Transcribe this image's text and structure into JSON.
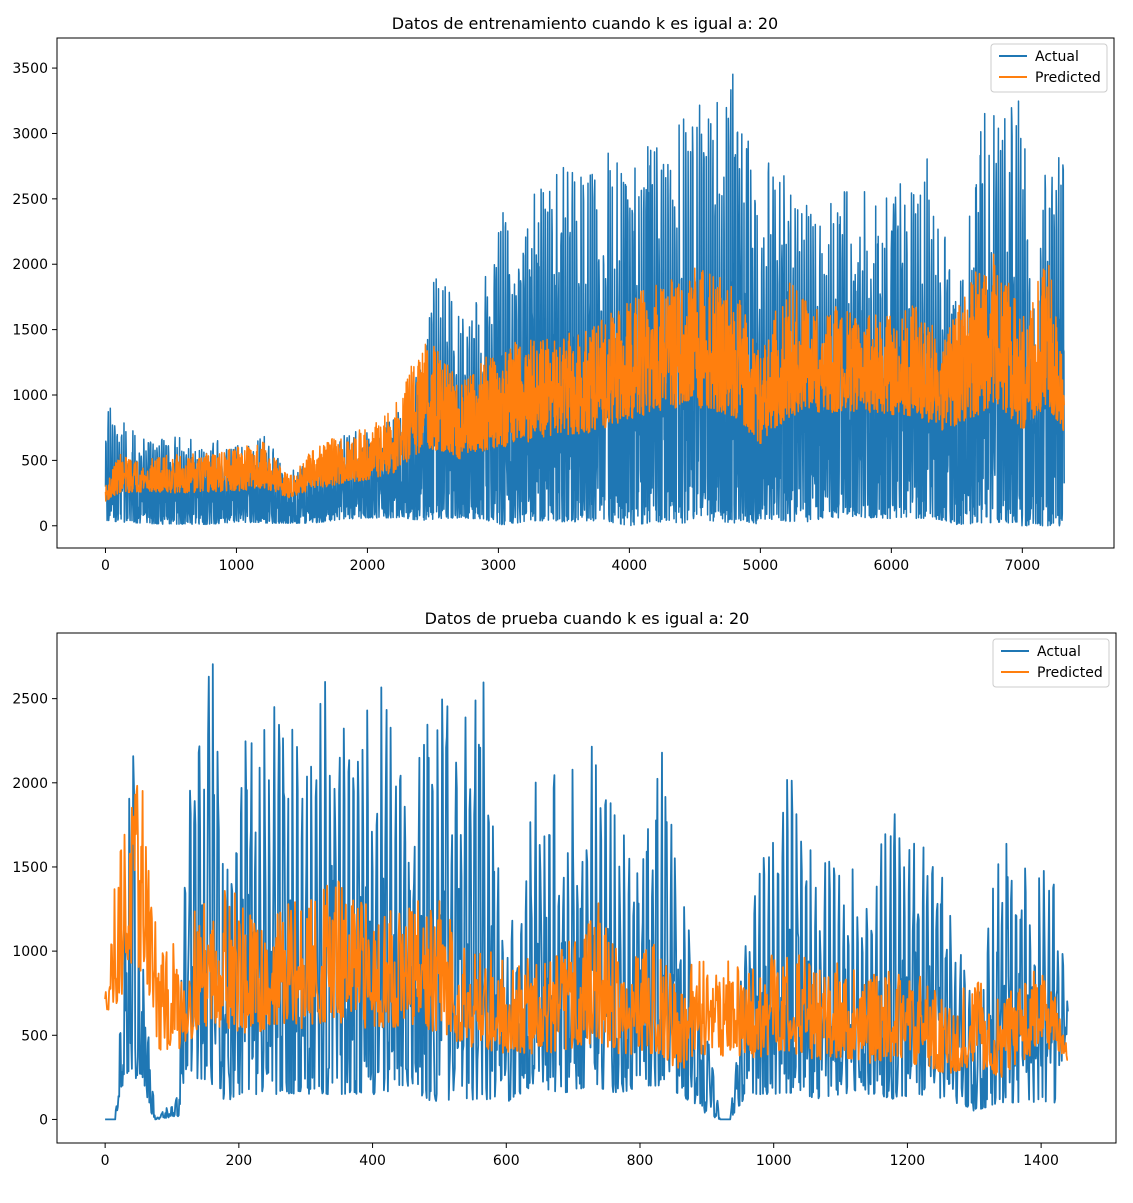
{
  "figure": {
    "background": "#ffffff",
    "axis_color": "#000000",
    "series_colors": [
      "#1f77b4",
      "#ff7f0e"
    ]
  },
  "chart_data": [
    {
      "type": "line",
      "title": "Datos de entrenamiento cuando k es igual a: 20",
      "xlabel": "",
      "ylabel": "",
      "xlim": [
        -370,
        7700
      ],
      "ylim": [
        -170,
        3730
      ],
      "xticks": [
        0,
        1000,
        2000,
        3000,
        4000,
        5000,
        6000,
        7000
      ],
      "yticks": [
        0,
        500,
        1000,
        1500,
        2000,
        2500,
        3000,
        3500
      ],
      "x_range": [
        0,
        7320
      ],
      "grid": false,
      "legend_position": "top-right",
      "series": [
        {
          "name": "Actual",
          "color": "#1f77b4",
          "envelope": [
            [
              0,
              930,
              40
            ],
            [
              100,
              850,
              30
            ],
            [
              250,
              700,
              20
            ],
            [
              500,
              680,
              10
            ],
            [
              800,
              650,
              10
            ],
            [
              1000,
              690,
              30
            ],
            [
              1200,
              700,
              20
            ],
            [
              1400,
              420,
              20
            ],
            [
              1600,
              500,
              20
            ],
            [
              1800,
              700,
              50
            ],
            [
              2000,
              750,
              60
            ],
            [
              2200,
              820,
              60
            ],
            [
              2450,
              1400,
              40
            ],
            [
              2500,
              2100,
              50
            ],
            [
              2700,
              1600,
              60
            ],
            [
              2900,
              1900,
              50
            ],
            [
              3000,
              2400,
              0
            ],
            [
              3200,
              2400,
              30
            ],
            [
              3300,
              2690,
              40
            ],
            [
              3500,
              2800,
              20
            ],
            [
              3700,
              2700,
              40
            ],
            [
              3900,
              2950,
              20
            ],
            [
              4000,
              2900,
              0
            ],
            [
              4200,
              3000,
              30
            ],
            [
              4400,
              3250,
              20
            ],
            [
              4600,
              3200,
              40
            ],
            [
              4800,
              3560,
              20
            ],
            [
              4850,
              3400,
              40
            ],
            [
              5000,
              2600,
              10
            ],
            [
              5100,
              2900,
              50
            ],
            [
              5300,
              2450,
              20
            ],
            [
              5500,
              2500,
              60
            ],
            [
              5700,
              2700,
              60
            ],
            [
              5900,
              2450,
              60
            ],
            [
              6100,
              2700,
              50
            ],
            [
              6300,
              2830,
              60
            ],
            [
              6500,
              1700,
              10
            ],
            [
              6700,
              3150,
              20
            ],
            [
              6850,
              3300,
              30
            ],
            [
              7000,
              3280,
              0
            ],
            [
              7100,
              1500,
              0
            ],
            [
              7200,
              3150,
              0
            ],
            [
              7320,
              2850,
              0
            ]
          ]
        },
        {
          "name": "Predicted",
          "color": "#ff7f0e",
          "envelope": [
            [
              0,
              300,
              150
            ],
            [
              100,
              550,
              150
            ],
            [
              300,
              500,
              180
            ],
            [
              500,
              550,
              150
            ],
            [
              800,
              550,
              160
            ],
            [
              1000,
              600,
              150
            ],
            [
              1200,
              650,
              170
            ],
            [
              1400,
              380,
              160
            ],
            [
              1600,
              600,
              180
            ],
            [
              1800,
              700,
              190
            ],
            [
              2000,
              750,
              220
            ],
            [
              2200,
              900,
              240
            ],
            [
              2450,
              1500,
              300
            ],
            [
              2700,
              1100,
              300
            ],
            [
              2900,
              1300,
              340
            ],
            [
              3100,
              1400,
              350
            ],
            [
              3400,
              1450,
              420
            ],
            [
              3700,
              1500,
              450
            ],
            [
              4000,
              1750,
              500
            ],
            [
              4300,
              1900,
              550
            ],
            [
              4500,
              2000,
              550
            ],
            [
              4800,
              1850,
              500
            ],
            [
              5000,
              1300,
              400
            ],
            [
              5200,
              1900,
              450
            ],
            [
              5400,
              1650,
              600
            ],
            [
              5700,
              1700,
              600
            ],
            [
              6000,
              1600,
              600
            ],
            [
              6200,
              1700,
              550
            ],
            [
              6400,
              1400,
              500
            ],
            [
              6600,
              1900,
              450
            ],
            [
              6800,
              2100,
              500
            ],
            [
              7000,
              1600,
              450
            ],
            [
              7200,
              2100,
              500
            ],
            [
              7320,
              1350,
              500
            ]
          ]
        }
      ]
    },
    {
      "type": "line",
      "title": "Datos de prueba cuando k es igual a: 20",
      "xlabel": "",
      "ylabel": "",
      "xlim": [
        -72,
        1512
      ],
      "ylim": [
        -140,
        2890
      ],
      "xticks": [
        0,
        200,
        400,
        600,
        800,
        1000,
        1200,
        1400
      ],
      "yticks": [
        0,
        500,
        1000,
        1500,
        2000,
        2500
      ],
      "x_range": [
        0,
        1440
      ],
      "grid": false,
      "legend_position": "top-right",
      "series": [
        {
          "name": "Actual",
          "color": "#1f77b4",
          "envelope": [
            [
              0,
              0,
              0
            ],
            [
              15,
              0,
              0
            ],
            [
              25,
              800,
              180
            ],
            [
              40,
              2400,
              300
            ],
            [
              50,
              1200,
              200
            ],
            [
              60,
              1000,
              100
            ],
            [
              75,
              0,
              0
            ],
            [
              110,
              150,
              20
            ],
            [
              120,
              2000,
              300
            ],
            [
              135,
              2270,
              250
            ],
            [
              160,
              2790,
              200
            ],
            [
              180,
              1400,
              100
            ],
            [
              200,
              2000,
              150
            ],
            [
              210,
              2520,
              150
            ],
            [
              240,
              2400,
              150
            ],
            [
              260,
              2620,
              150
            ],
            [
              300,
              2100,
              150
            ],
            [
              330,
              2640,
              150
            ],
            [
              350,
              2720,
              150
            ],
            [
              380,
              2350,
              150
            ],
            [
              410,
              2630,
              150
            ],
            [
              450,
              2000,
              200
            ],
            [
              490,
              2610,
              100
            ],
            [
              520,
              2420,
              100
            ],
            [
              545,
              2610,
              100
            ],
            [
              570,
              2640,
              120
            ],
            [
              600,
              1000,
              100
            ],
            [
              640,
              2040,
              200
            ],
            [
              680,
              2050,
              150
            ],
            [
              730,
              2250,
              200
            ],
            [
              770,
              1750,
              150
            ],
            [
              800,
              1700,
              200
            ],
            [
              830,
              2360,
              200
            ],
            [
              860,
              1400,
              150
            ],
            [
              900,
              600,
              30
            ],
            [
              920,
              0,
              0
            ],
            [
              935,
              0,
              0
            ],
            [
              960,
              1300,
              150
            ],
            [
              1000,
              1800,
              150
            ],
            [
              1030,
              2220,
              150
            ],
            [
              1060,
              1600,
              120
            ],
            [
              1100,
              1550,
              150
            ],
            [
              1150,
              1600,
              150
            ],
            [
              1180,
              1900,
              120
            ],
            [
              1210,
              1850,
              150
            ],
            [
              1260,
              1400,
              120
            ],
            [
              1300,
              700,
              50
            ],
            [
              1340,
              1720,
              100
            ],
            [
              1380,
              1540,
              100
            ],
            [
              1420,
              1500,
              100
            ],
            [
              1440,
              700,
              550
            ]
          ]
        },
        {
          "name": "Predicted",
          "color": "#ff7f0e",
          "envelope": [
            [
              0,
              750,
              600
            ],
            [
              20,
              1650,
              380
            ],
            [
              40,
              2020,
              500
            ],
            [
              60,
              1970,
              500
            ],
            [
              80,
              1000,
              200
            ],
            [
              120,
              1100,
              200
            ],
            [
              140,
              1300,
              300
            ],
            [
              180,
              1450,
              250
            ],
            [
              220,
              1200,
              250
            ],
            [
              260,
              1300,
              300
            ],
            [
              300,
              1300,
              280
            ],
            [
              340,
              1450,
              300
            ],
            [
              380,
              1300,
              280
            ],
            [
              420,
              1300,
              300
            ],
            [
              460,
              1300,
              280
            ],
            [
              500,
              1300,
              250
            ],
            [
              540,
              1100,
              220
            ],
            [
              580,
              1000,
              200
            ],
            [
              620,
              950,
              200
            ],
            [
              660,
              1000,
              180
            ],
            [
              700,
              1100,
              200
            ],
            [
              740,
              1300,
              180
            ],
            [
              780,
              900,
              180
            ],
            [
              820,
              1100,
              160
            ],
            [
              860,
              800,
              120
            ],
            [
              900,
              1100,
              150
            ],
            [
              940,
              950,
              170
            ],
            [
              980,
              900,
              180
            ],
            [
              1020,
              1100,
              180
            ],
            [
              1060,
              900,
              170
            ],
            [
              1100,
              950,
              170
            ],
            [
              1140,
              850,
              160
            ],
            [
              1180,
              900,
              160
            ],
            [
              1220,
              850,
              150
            ],
            [
              1260,
              700,
              120
            ],
            [
              1300,
              850,
              150
            ],
            [
              1340,
              700,
              100
            ],
            [
              1380,
              950,
              180
            ],
            [
              1420,
              800,
              300
            ],
            [
              1440,
              400,
              320
            ]
          ]
        }
      ]
    }
  ]
}
